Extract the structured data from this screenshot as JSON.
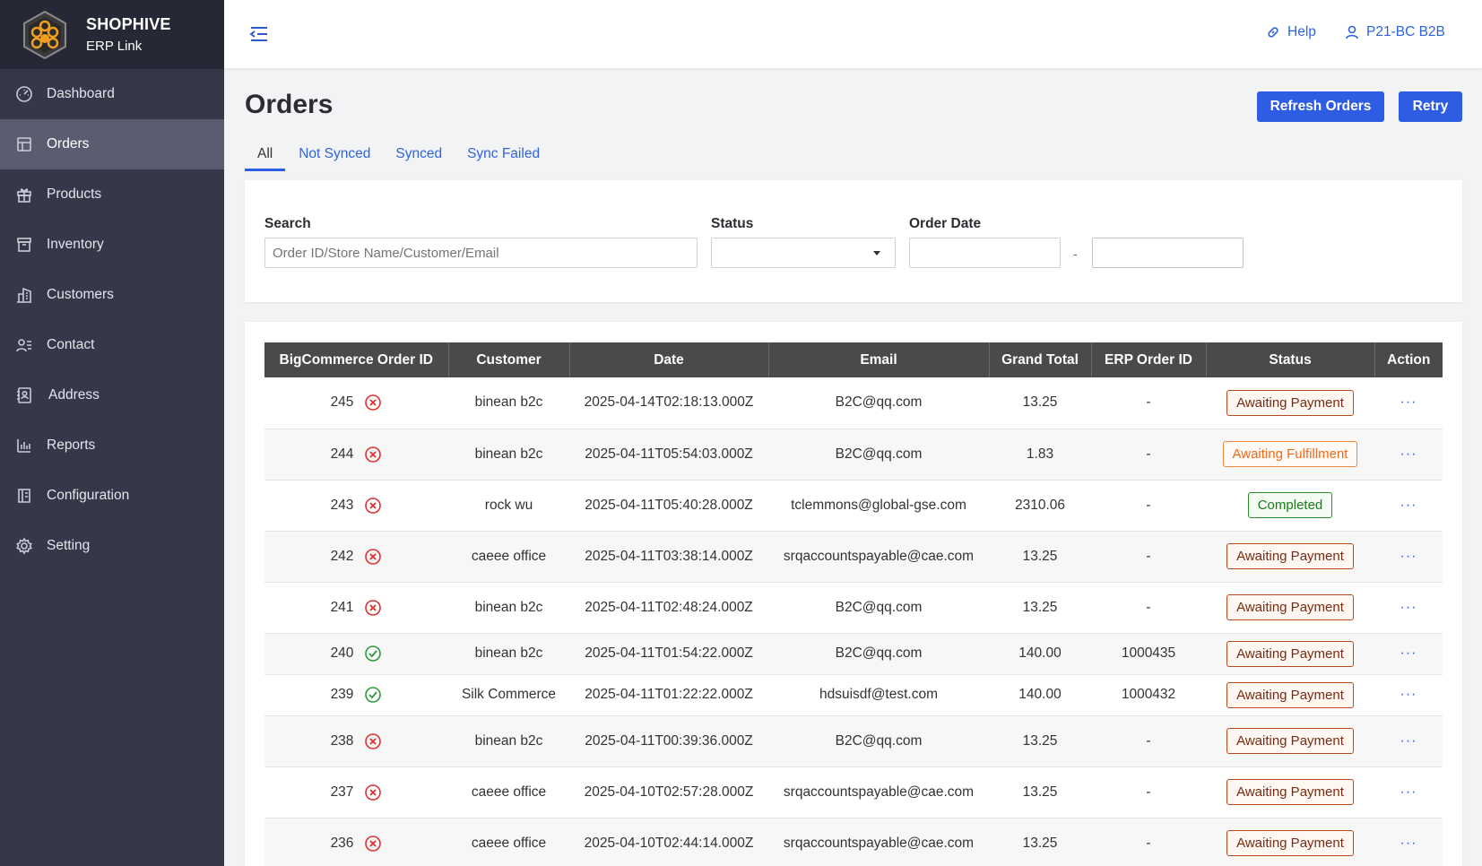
{
  "brand": {
    "name": "SHOPHIVE",
    "sub": "ERP Link"
  },
  "sidebar": {
    "items": [
      {
        "label": "Dashboard",
        "icon": "dashboard-icon"
      },
      {
        "label": "Orders",
        "icon": "orders-icon",
        "active": true
      },
      {
        "label": "Products",
        "icon": "gift-icon"
      },
      {
        "label": "Inventory",
        "icon": "archive-icon"
      },
      {
        "label": "Customers",
        "icon": "building-icon"
      },
      {
        "label": "Contact",
        "icon": "contact-icon"
      },
      {
        "label": "Address",
        "icon": "address-book-icon"
      },
      {
        "label": "Reports",
        "icon": "bar-chart-icon"
      },
      {
        "label": "Configuration",
        "icon": "config-icon"
      },
      {
        "label": "Setting",
        "icon": "gear-icon"
      }
    ]
  },
  "header": {
    "help": "Help",
    "user": "P21-BC B2B"
  },
  "page": {
    "title": "Orders",
    "refresh_label": "Refresh Orders",
    "retry_label": "Retry"
  },
  "tabs": [
    "All",
    "Not Synced",
    "Synced",
    "Sync Failed"
  ],
  "filters": {
    "search_label": "Search",
    "search_placeholder": "Order ID/Store Name/Customer/Email",
    "status_label": "Status",
    "status_value": "",
    "date_label": "Order Date",
    "date_separator": "-"
  },
  "table": {
    "columns": [
      "BigCommerce Order ID",
      "Customer",
      "Date",
      "Email",
      "Grand Total",
      "ERP Order ID",
      "Status",
      "Action"
    ],
    "rows": [
      {
        "id": "245",
        "synced": false,
        "customer": "binean b2c",
        "date": "2025-04-14T02:18:13.000Z",
        "email": "B2C@qq.com",
        "total": "13.25",
        "erp": "-",
        "status": "Awaiting Payment",
        "kind": "payment"
      },
      {
        "id": "244",
        "synced": false,
        "customer": "binean b2c",
        "date": "2025-04-11T05:54:03.000Z",
        "email": "B2C@qq.com",
        "total": "1.83",
        "erp": "-",
        "status": "Awaiting Fulfillment",
        "kind": "fulfill"
      },
      {
        "id": "243",
        "synced": false,
        "customer": "rock wu",
        "date": "2025-04-11T05:40:28.000Z",
        "email": "tclemmons@global-gse.com",
        "total": "2310.06",
        "erp": "-",
        "status": "Completed",
        "kind": "complete"
      },
      {
        "id": "242",
        "synced": false,
        "customer": "caeee office",
        "date": "2025-04-11T03:38:14.000Z",
        "email": "srqaccountspayable@cae.com",
        "total": "13.25",
        "erp": "-",
        "status": "Awaiting Payment",
        "kind": "payment"
      },
      {
        "id": "241",
        "synced": false,
        "customer": "binean b2c",
        "date": "2025-04-11T02:48:24.000Z",
        "email": "B2C@qq.com",
        "total": "13.25",
        "erp": "-",
        "status": "Awaiting Payment",
        "kind": "payment"
      },
      {
        "id": "240",
        "synced": true,
        "customer": "binean b2c",
        "date": "2025-04-11T01:54:22.000Z",
        "email": "B2C@qq.com",
        "total": "140.00",
        "erp": "1000435",
        "status": "Awaiting Payment",
        "kind": "payment"
      },
      {
        "id": "239",
        "synced": true,
        "customer": "Silk Commerce",
        "date": "2025-04-11T01:22:22.000Z",
        "email": "hdsuisdf@test.com",
        "total": "140.00",
        "erp": "1000432",
        "status": "Awaiting Payment",
        "kind": "payment"
      },
      {
        "id": "238",
        "synced": false,
        "customer": "binean b2c",
        "date": "2025-04-11T00:39:36.000Z",
        "email": "B2C@qq.com",
        "total": "13.25",
        "erp": "-",
        "status": "Awaiting Payment",
        "kind": "payment"
      },
      {
        "id": "237",
        "synced": false,
        "customer": "caeee office",
        "date": "2025-04-10T02:57:28.000Z",
        "email": "srqaccountspayable@cae.com",
        "total": "13.25",
        "erp": "-",
        "status": "Awaiting Payment",
        "kind": "payment"
      },
      {
        "id": "236",
        "synced": false,
        "customer": "caeee office",
        "date": "2025-04-10T02:44:14.000Z",
        "email": "srqaccountspayable@cae.com",
        "total": "13.25",
        "erp": "-",
        "status": "Awaiting Payment",
        "kind": "payment"
      }
    ],
    "action_glyph": "···"
  },
  "colors": {
    "sidebar_bg": "#353849",
    "accent": "#2e5de4",
    "sync_ok": "#2a9a3a",
    "sync_fail": "#e03030"
  }
}
